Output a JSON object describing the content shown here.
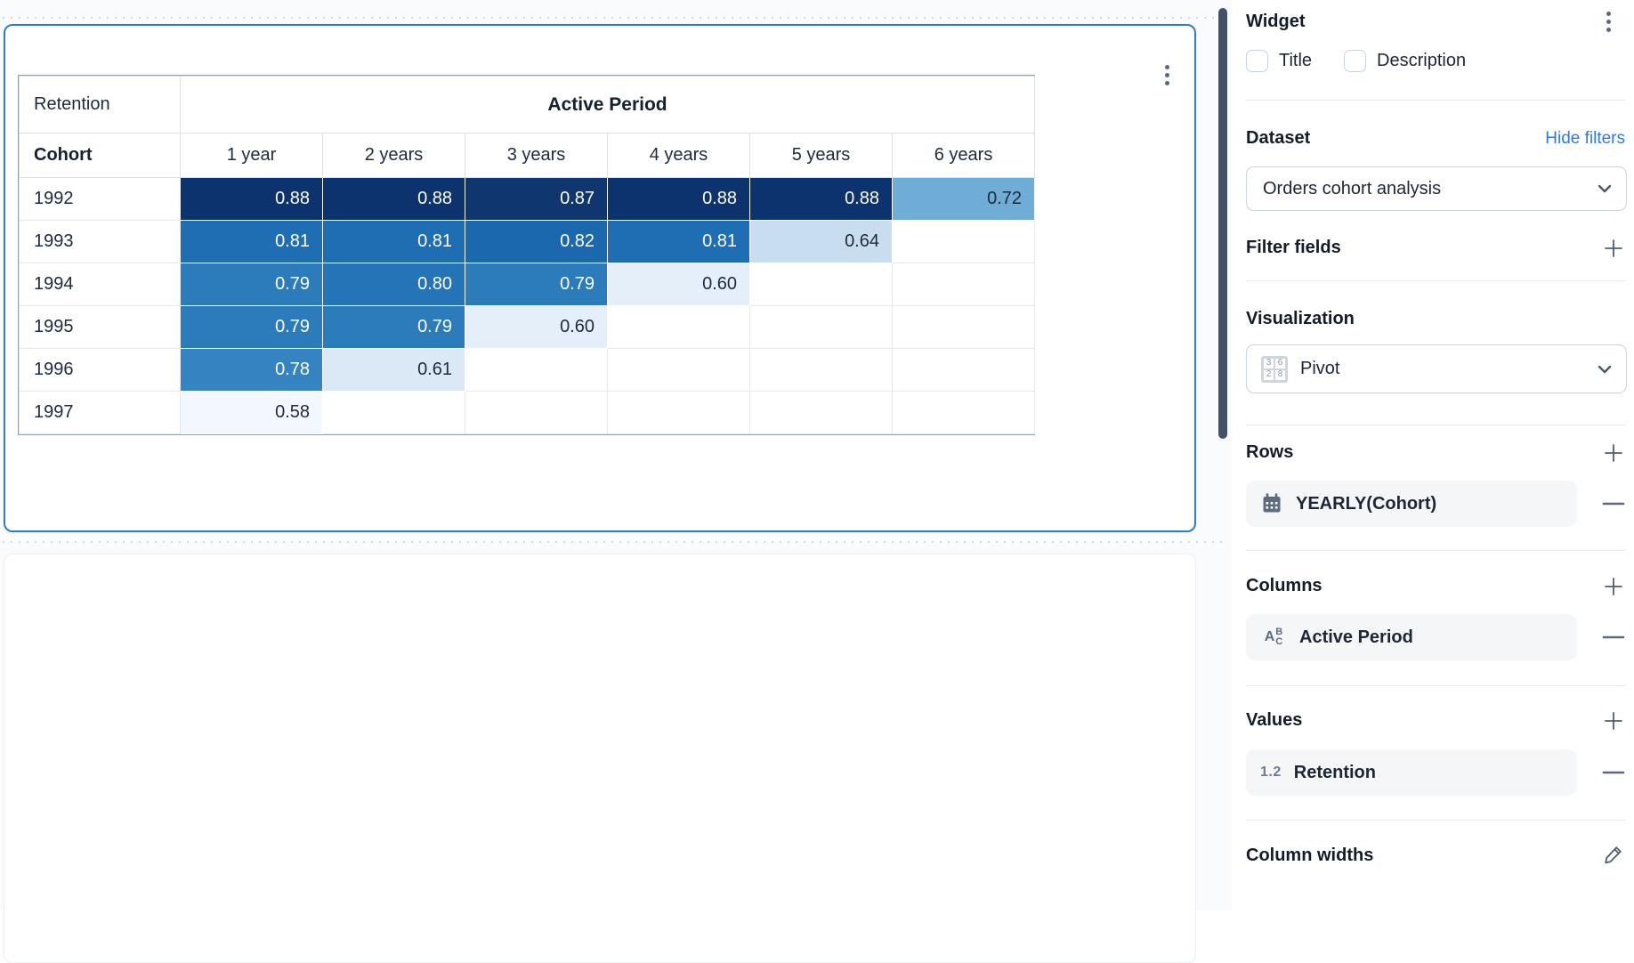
{
  "chart_data": {
    "type": "heatmap",
    "title": "Retention",
    "row_axis_label": "Cohort",
    "column_group_label": "Active Period",
    "columns": [
      "1 year",
      "2 years",
      "3 years",
      "4 years",
      "5 years",
      "6 years"
    ],
    "rows": [
      "1992",
      "1993",
      "1994",
      "1995",
      "1996",
      "1997"
    ],
    "values": [
      [
        "0.88",
        "0.88",
        "0.87",
        "0.88",
        "0.88",
        "0.72"
      ],
      [
        "0.81",
        "0.81",
        "0.82",
        "0.81",
        "0.64",
        null
      ],
      [
        "0.79",
        "0.80",
        "0.79",
        "0.60",
        null,
        null
      ],
      [
        "0.79",
        "0.79",
        "0.60",
        null,
        null,
        null
      ],
      [
        "0.78",
        "0.61",
        null,
        null,
        null,
        null
      ],
      [
        "0.58",
        null,
        null,
        null,
        null,
        null
      ]
    ],
    "palette": {
      "0.88": "#0d336e",
      "0.87": "#10366f",
      "0.82": "#1c68ae",
      "0.81": "#1f6db2",
      "0.80": "#2474b7",
      "0.79": "#2c7cbc",
      "0.78": "#3583c1",
      "0.72": "#6fadd6",
      "0.64": "#c9ddf0",
      "0.61": "#dbe9f6",
      "0.60": "#e4eff9",
      "0.58": "#f2f8fd"
    },
    "light_text_threshold": 0.78,
    "light_text_color": "#ffffff",
    "dark_text_color": "#1e293b"
  },
  "sidebar": {
    "title": "Widget",
    "checkboxes": [
      {
        "label": "Title",
        "checked": false
      },
      {
        "label": "Description",
        "checked": false
      }
    ],
    "dataset": {
      "heading": "Dataset",
      "link": "Hide filters",
      "selected": "Orders cohort analysis"
    },
    "filter_fields": {
      "heading": "Filter fields"
    },
    "visualization": {
      "heading": "Visualization",
      "selected": "Pivot",
      "icon_digits": [
        "3",
        "6",
        "2",
        "8"
      ]
    },
    "rows": {
      "heading": "Rows",
      "field": "YEARLY(Cohort)"
    },
    "columns": {
      "heading": "Columns",
      "field": "Active Period"
    },
    "values": {
      "heading": "Values",
      "badge": "1.2",
      "field": "Retention"
    },
    "column_widths": {
      "heading": "Column widths"
    },
    "accent_color": "#2e79e8"
  }
}
